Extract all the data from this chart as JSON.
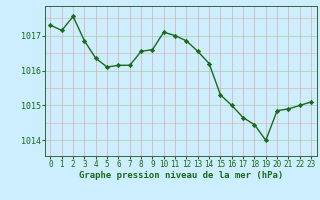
{
  "x": [
    0,
    1,
    2,
    3,
    4,
    5,
    6,
    7,
    8,
    9,
    10,
    11,
    12,
    13,
    14,
    15,
    16,
    17,
    18,
    19,
    20,
    21,
    22,
    23
  ],
  "y": [
    1017.3,
    1017.15,
    1017.55,
    1016.85,
    1016.35,
    1016.1,
    1016.15,
    1016.15,
    1016.55,
    1016.6,
    1017.1,
    1017.0,
    1016.85,
    1016.55,
    1016.2,
    1015.3,
    1015.0,
    1014.65,
    1014.45,
    1014.0,
    1014.85,
    1014.9,
    1015.0,
    1015.1
  ],
  "line_color": "#1a6b1a",
  "marker": "D",
  "marker_size": 2.2,
  "bg_color": "#cceeff",
  "grid_color_h": "#aaccaa",
  "grid_color_v": "#ddaaaa",
  "ylabel_ticks": [
    1014,
    1015,
    1016,
    1017
  ],
  "ylim": [
    1013.55,
    1017.85
  ],
  "xlim": [
    -0.5,
    23.5
  ],
  "xlabel": "Graphe pression niveau de la mer (hPa)",
  "xlabel_fontsize": 6.5,
  "tick_fontsize": 6.0,
  "line_width": 1.0,
  "spine_color": "#336633",
  "fig_width": 3.2,
  "fig_height": 2.0,
  "dpi": 100
}
